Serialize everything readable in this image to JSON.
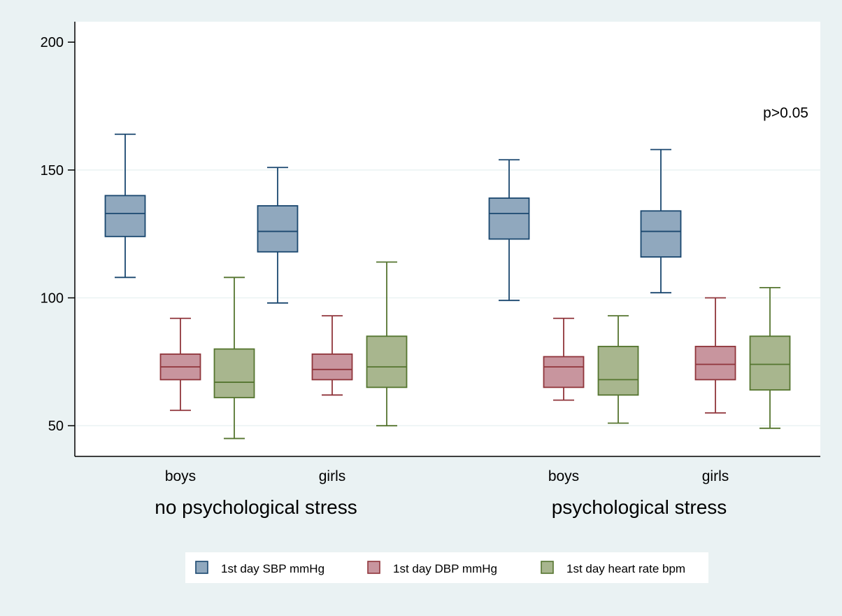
{
  "chart_data": {
    "type": "box",
    "ylim": [
      38,
      208
    ],
    "yticks": [
      50,
      100,
      150,
      200
    ],
    "grid": true,
    "legend_position": "bottom",
    "annotation": "p>0.05",
    "groups": [
      {
        "label": "no psychological stress",
        "categories": [
          {
            "label": "boys",
            "boxes": [
              {
                "series": "1st day SBP mmHg",
                "whisker_low": 108,
                "q1": 124,
                "median": 133,
                "q3": 140,
                "whisker_high": 164
              },
              {
                "series": "1st day DBP mmHg",
                "whisker_low": 56,
                "q1": 68,
                "median": 73,
                "q3": 78,
                "whisker_high": 92
              },
              {
                "series": "1st day heart rate bpm",
                "whisker_low": 45,
                "q1": 61,
                "median": 67,
                "q3": 80,
                "whisker_high": 108
              }
            ]
          },
          {
            "label": "girls",
            "boxes": [
              {
                "series": "1st day SBP mmHg",
                "whisker_low": 98,
                "q1": 118,
                "median": 126,
                "q3": 136,
                "whisker_high": 151
              },
              {
                "series": "1st day DBP mmHg",
                "whisker_low": 62,
                "q1": 68,
                "median": 72,
                "q3": 78,
                "whisker_high": 93
              },
              {
                "series": "1st day heart rate bpm",
                "whisker_low": 50,
                "q1": 65,
                "median": 73,
                "q3": 85,
                "whisker_high": 114
              }
            ]
          }
        ]
      },
      {
        "label": "psychological stress",
        "categories": [
          {
            "label": "boys",
            "boxes": [
              {
                "series": "1st day SBP mmHg",
                "whisker_low": 99,
                "q1": 123,
                "median": 133,
                "q3": 139,
                "whisker_high": 154
              },
              {
                "series": "1st day DBP mmHg",
                "whisker_low": 60,
                "q1": 65,
                "median": 73,
                "q3": 77,
                "whisker_high": 92
              },
              {
                "series": "1st day heart rate bpm",
                "whisker_low": 51,
                "q1": 62,
                "median": 68,
                "q3": 81,
                "whisker_high": 93
              }
            ]
          },
          {
            "label": "girls",
            "boxes": [
              {
                "series": "1st day SBP mmHg",
                "whisker_low": 102,
                "q1": 116,
                "median": 126,
                "q3": 134,
                "whisker_high": 158
              },
              {
                "series": "1st day DBP mmHg",
                "whisker_low": 55,
                "q1": 68,
                "median": 74,
                "q3": 81,
                "whisker_high": 100
              },
              {
                "series": "1st day heart rate bpm",
                "whisker_low": 49,
                "q1": 64,
                "median": 74,
                "q3": 85,
                "whisker_high": 104
              }
            ]
          }
        ]
      }
    ],
    "series": [
      {
        "name": "1st day SBP mmHg",
        "fill": "#90a8be",
        "stroke": "#1a476f"
      },
      {
        "name": "1st day DBP mmHg",
        "fill": "#c8959e",
        "stroke": "#90353b"
      },
      {
        "name": "1st day heart rate bpm",
        "fill": "#a8b68e",
        "stroke": "#55752f"
      }
    ],
    "colors": {
      "page_background": "#eaf2f3",
      "plot_background": "#ffffff",
      "gridline": "#eaf2f3",
      "axis": "#000000"
    }
  }
}
